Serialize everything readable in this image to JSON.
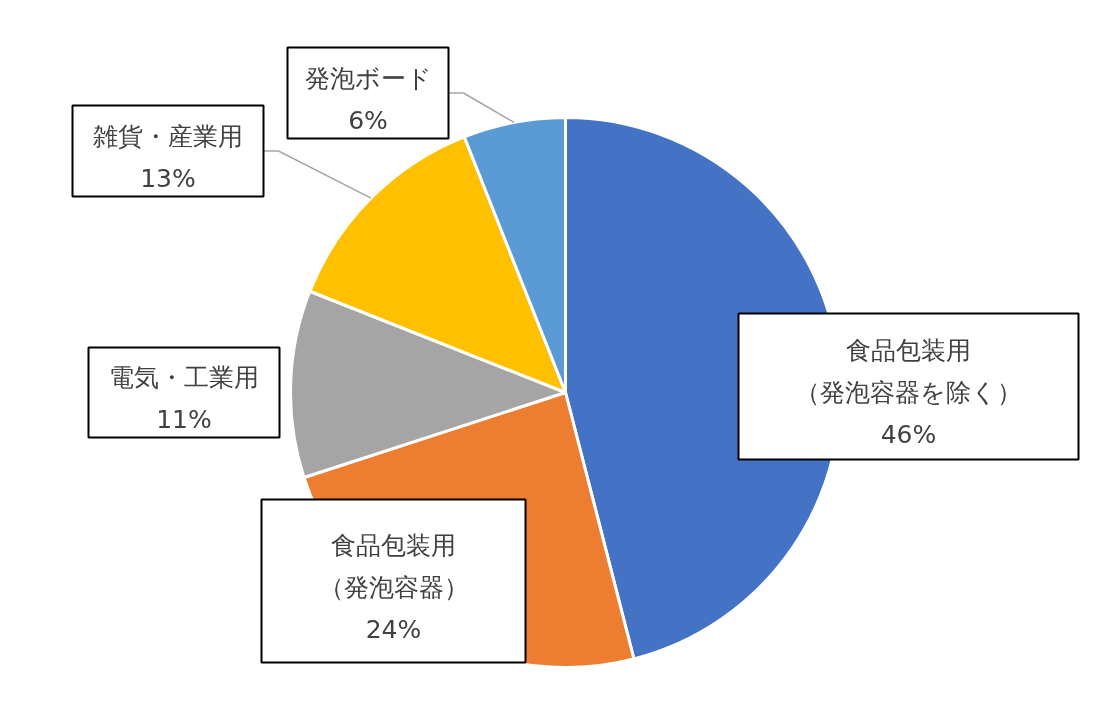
{
  "chart_data": {
    "type": "pie",
    "categories": [
      "食品包装用（発泡容器を除く）",
      "食品包装用（発泡容器）",
      "電気・工業用",
      "雑貨・産業用",
      "発泡ボード"
    ],
    "values": [
      46,
      24,
      11,
      13,
      6
    ],
    "colors": [
      "#4472c4",
      "#ed7d31",
      "#a5a5a5",
      "#ffc000",
      "#5b9bd5"
    ],
    "value_labels": [
      "46%",
      "24%",
      "11%",
      "13%",
      "6%"
    ]
  }
}
